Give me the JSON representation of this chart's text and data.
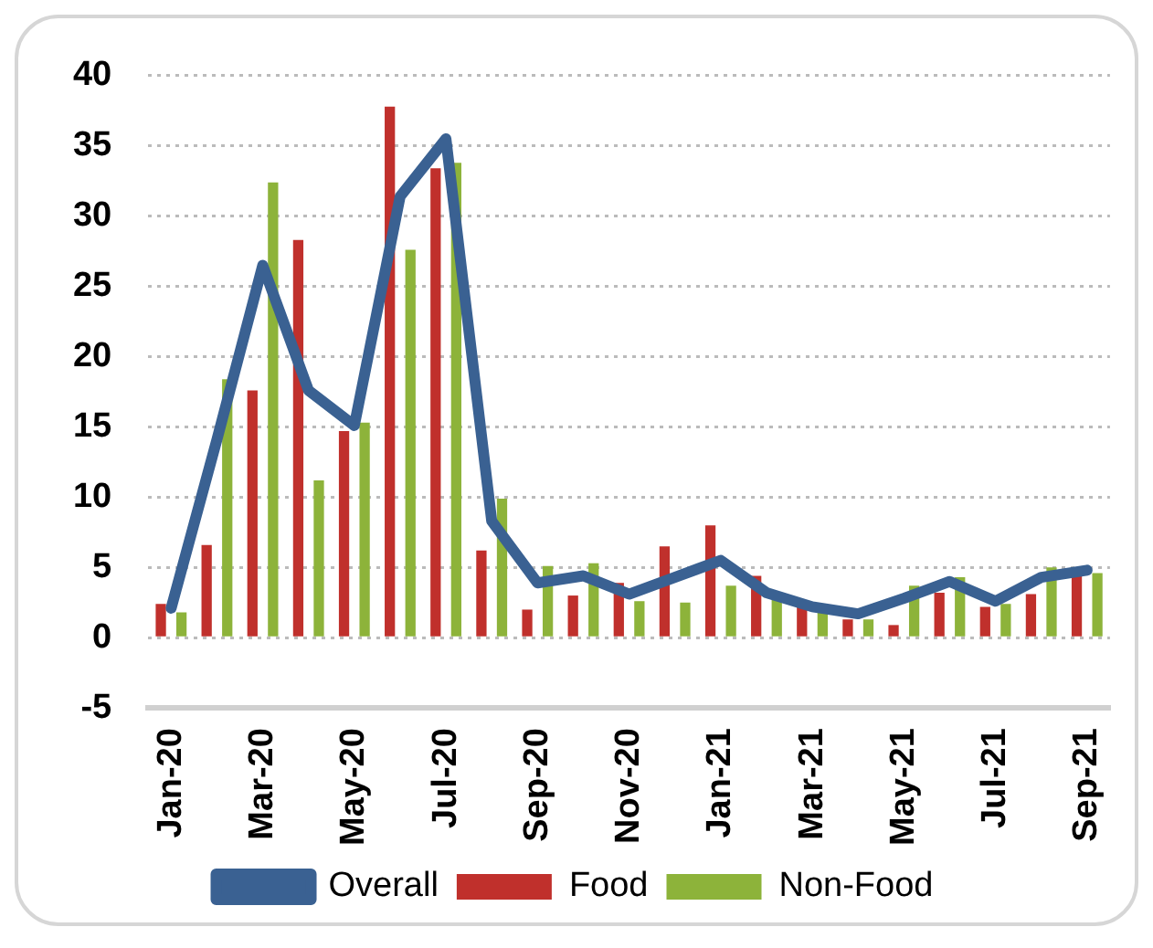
{
  "chart_data": {
    "type": "bar",
    "categories": [
      "Jan-20",
      null,
      "Mar-20",
      null,
      "May-20",
      null,
      "Jul-20",
      null,
      "Sep-20",
      null,
      "Nov-20",
      null,
      "Jan-21",
      null,
      "Mar-21",
      null,
      "May-21",
      null,
      "Jul-21",
      null,
      "Sep-21"
    ],
    "series": [
      {
        "name": "Food",
        "color": "#c0302c",
        "values": [
          2.4,
          6.6,
          17.6,
          28.3,
          14.7,
          37.8,
          33.4,
          6.2,
          2.0,
          3.0,
          3.9,
          6.5,
          8.0,
          4.4,
          2.2,
          1.3,
          0.9,
          3.2,
          2.2,
          3.1,
          4.4
        ]
      },
      {
        "name": "Non-Food",
        "color": "#8db33a",
        "values": [
          1.8,
          18.4,
          32.4,
          11.2,
          15.3,
          27.6,
          33.8,
          9.9,
          5.1,
          5.3,
          2.6,
          2.5,
          3.7,
          2.7,
          1.9,
          1.3,
          3.7,
          4.3,
          2.4,
          5.0,
          4.6
        ]
      },
      {
        "name": "Overall",
        "type": "line",
        "color": "#3a6192",
        "values": [
          2.1,
          14.1,
          26.5,
          17.6,
          15.1,
          31.4,
          35.5,
          8.3,
          3.9,
          4.4,
          3.1,
          4.3,
          5.5,
          3.2,
          2.2,
          1.7,
          2.8,
          4.0,
          2.6,
          4.3,
          4.8
        ]
      }
    ],
    "ylim": [
      -5,
      40
    ],
    "yticks": [
      -5,
      0,
      5,
      10,
      15,
      20,
      25,
      30,
      35,
      40
    ],
    "grid": "y",
    "legend": "bottom",
    "marker": "none"
  }
}
